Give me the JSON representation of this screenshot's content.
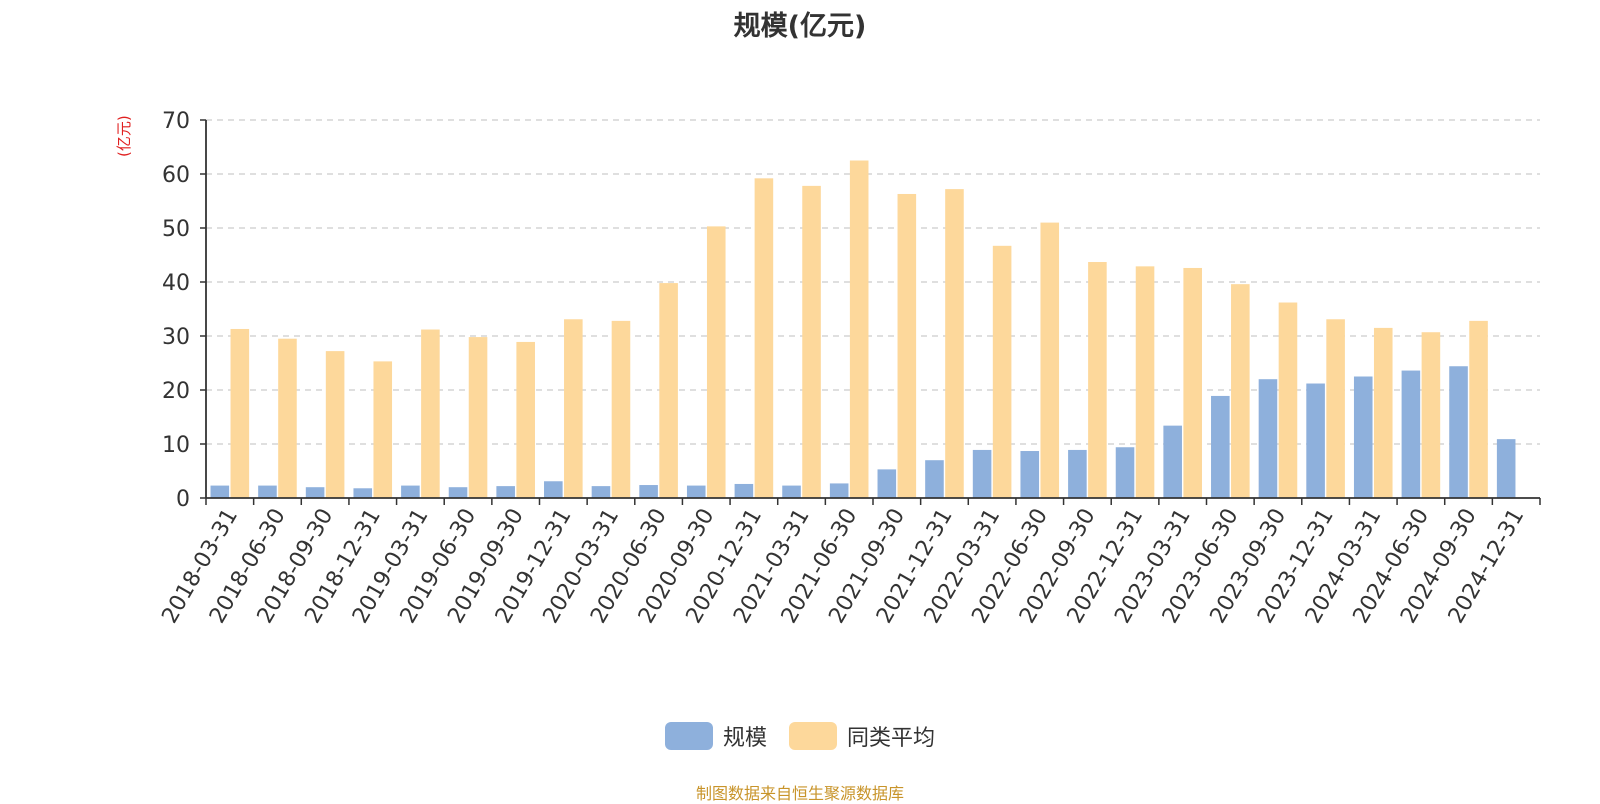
{
  "chart_data": {
    "type": "bar",
    "title": "规模(亿元)",
    "ylabel": "(亿元)",
    "ylim": [
      0,
      70
    ],
    "yticks": [
      0,
      10,
      20,
      30,
      40,
      50,
      60,
      70
    ],
    "grid": true,
    "legend_position": "bottom",
    "categories": [
      "2018-03-31",
      "2018-06-30",
      "2018-09-30",
      "2018-12-31",
      "2019-03-31",
      "2019-06-30",
      "2019-09-30",
      "2019-12-31",
      "2020-03-31",
      "2020-06-30",
      "2020-09-30",
      "2020-12-31",
      "2021-03-31",
      "2021-06-30",
      "2021-09-30",
      "2021-12-31",
      "2022-03-31",
      "2022-06-30",
      "2022-09-30",
      "2022-12-31",
      "2023-03-31",
      "2023-06-30",
      "2023-09-30",
      "2023-12-31",
      "2024-03-31",
      "2024-06-30",
      "2024-09-30",
      "2024-12-31"
    ],
    "series": [
      {
        "name": "规模",
        "color": "#8eb0dc",
        "values": [
          2.3,
          2.3,
          2.0,
          1.8,
          2.3,
          2.0,
          2.2,
          3.1,
          2.2,
          2.4,
          2.3,
          2.6,
          2.3,
          2.7,
          5.3,
          7.0,
          8.9,
          8.7,
          8.9,
          9.4,
          13.4,
          18.9,
          22.0,
          21.2,
          22.5,
          23.6,
          24.4,
          10.9
        ]
      },
      {
        "name": "同类平均",
        "color": "#fdd89b",
        "values": [
          31.3,
          29.5,
          27.2,
          25.3,
          31.2,
          29.8,
          28.9,
          33.1,
          32.8,
          39.8,
          50.3,
          59.2,
          57.8,
          62.5,
          56.3,
          57.2,
          46.7,
          51.0,
          43.7,
          42.9,
          42.6,
          39.6,
          36.2,
          33.1,
          31.5,
          30.7,
          32.8,
          null
        ]
      }
    ]
  },
  "source_note": "制图数据来自恒生聚源数据库"
}
